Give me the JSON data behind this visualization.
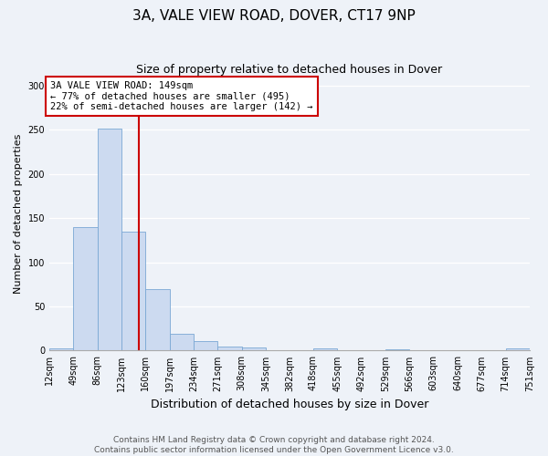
{
  "title": "3A, VALE VIEW ROAD, DOVER, CT17 9NP",
  "subtitle": "Size of property relative to detached houses in Dover",
  "xlabel": "Distribution of detached houses by size in Dover",
  "ylabel": "Number of detached properties",
  "bin_edges": [
    12,
    49,
    86,
    123,
    160,
    197,
    234,
    271,
    308,
    345,
    382,
    418,
    455,
    492,
    529,
    566,
    603,
    640,
    677,
    714,
    751
  ],
  "bar_heights": [
    3,
    140,
    251,
    135,
    70,
    19,
    11,
    5,
    4,
    0,
    0,
    3,
    0,
    0,
    1,
    0,
    0,
    0,
    0,
    2
  ],
  "bar_color": "#ccdaf0",
  "bar_edge_color": "#7aa8d4",
  "property_line_x": 149,
  "property_line_color": "#cc0000",
  "annotation_text": "3A VALE VIEW ROAD: 149sqm\n← 77% of detached houses are smaller (495)\n22% of semi-detached houses are larger (142) →",
  "annotation_box_color": "#ffffff",
  "annotation_box_edge_color": "#cc0000",
  "ylim": [
    0,
    310
  ],
  "yticks": [
    0,
    50,
    100,
    150,
    200,
    250,
    300
  ],
  "footer_text": "Contains HM Land Registry data © Crown copyright and database right 2024.\nContains public sector information licensed under the Open Government Licence v3.0.",
  "title_fontsize": 11,
  "subtitle_fontsize": 9,
  "xlabel_fontsize": 9,
  "ylabel_fontsize": 8,
  "tick_fontsize": 7,
  "annot_fontsize": 7.5,
  "footer_fontsize": 6.5,
  "bg_color": "#eef2f8"
}
